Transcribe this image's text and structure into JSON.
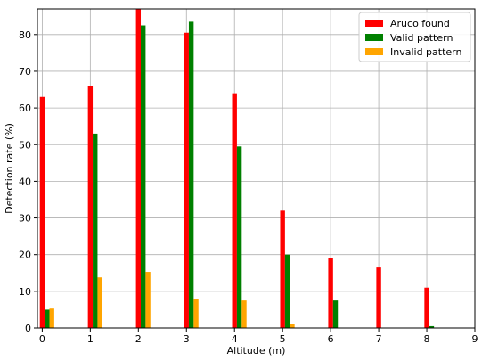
{
  "chart_data": {
    "type": "bar",
    "xlabel": "Altitude (m)",
    "ylabel": "Detection rate (%)",
    "xlim": [
      -0.1,
      9
    ],
    "ylim": [
      0,
      87
    ],
    "x_ticks": [
      0,
      1,
      2,
      3,
      4,
      5,
      6,
      7,
      8,
      9
    ],
    "y_ticks": [
      0,
      10,
      20,
      30,
      40,
      50,
      60,
      70,
      80
    ],
    "grid": true,
    "legend_position": "top-right",
    "categories": [
      0,
      1,
      2,
      3,
      4,
      5,
      6,
      7,
      8
    ],
    "series": [
      {
        "name": "Aruco found",
        "color": "#ff0000",
        "values": [
          63,
          66,
          87,
          80.5,
          64,
          32,
          19,
          16.5,
          11
        ]
      },
      {
        "name": "Valid pattern",
        "color": "#008000",
        "values": [
          5,
          53,
          82.5,
          83.5,
          49.5,
          20,
          7.5,
          0,
          0.5
        ]
      },
      {
        "name": "Invalid pattern",
        "color": "#ffa500",
        "values": [
          5.3,
          13.8,
          15.3,
          7.8,
          7.5,
          1,
          0,
          0,
          0
        ]
      }
    ]
  }
}
